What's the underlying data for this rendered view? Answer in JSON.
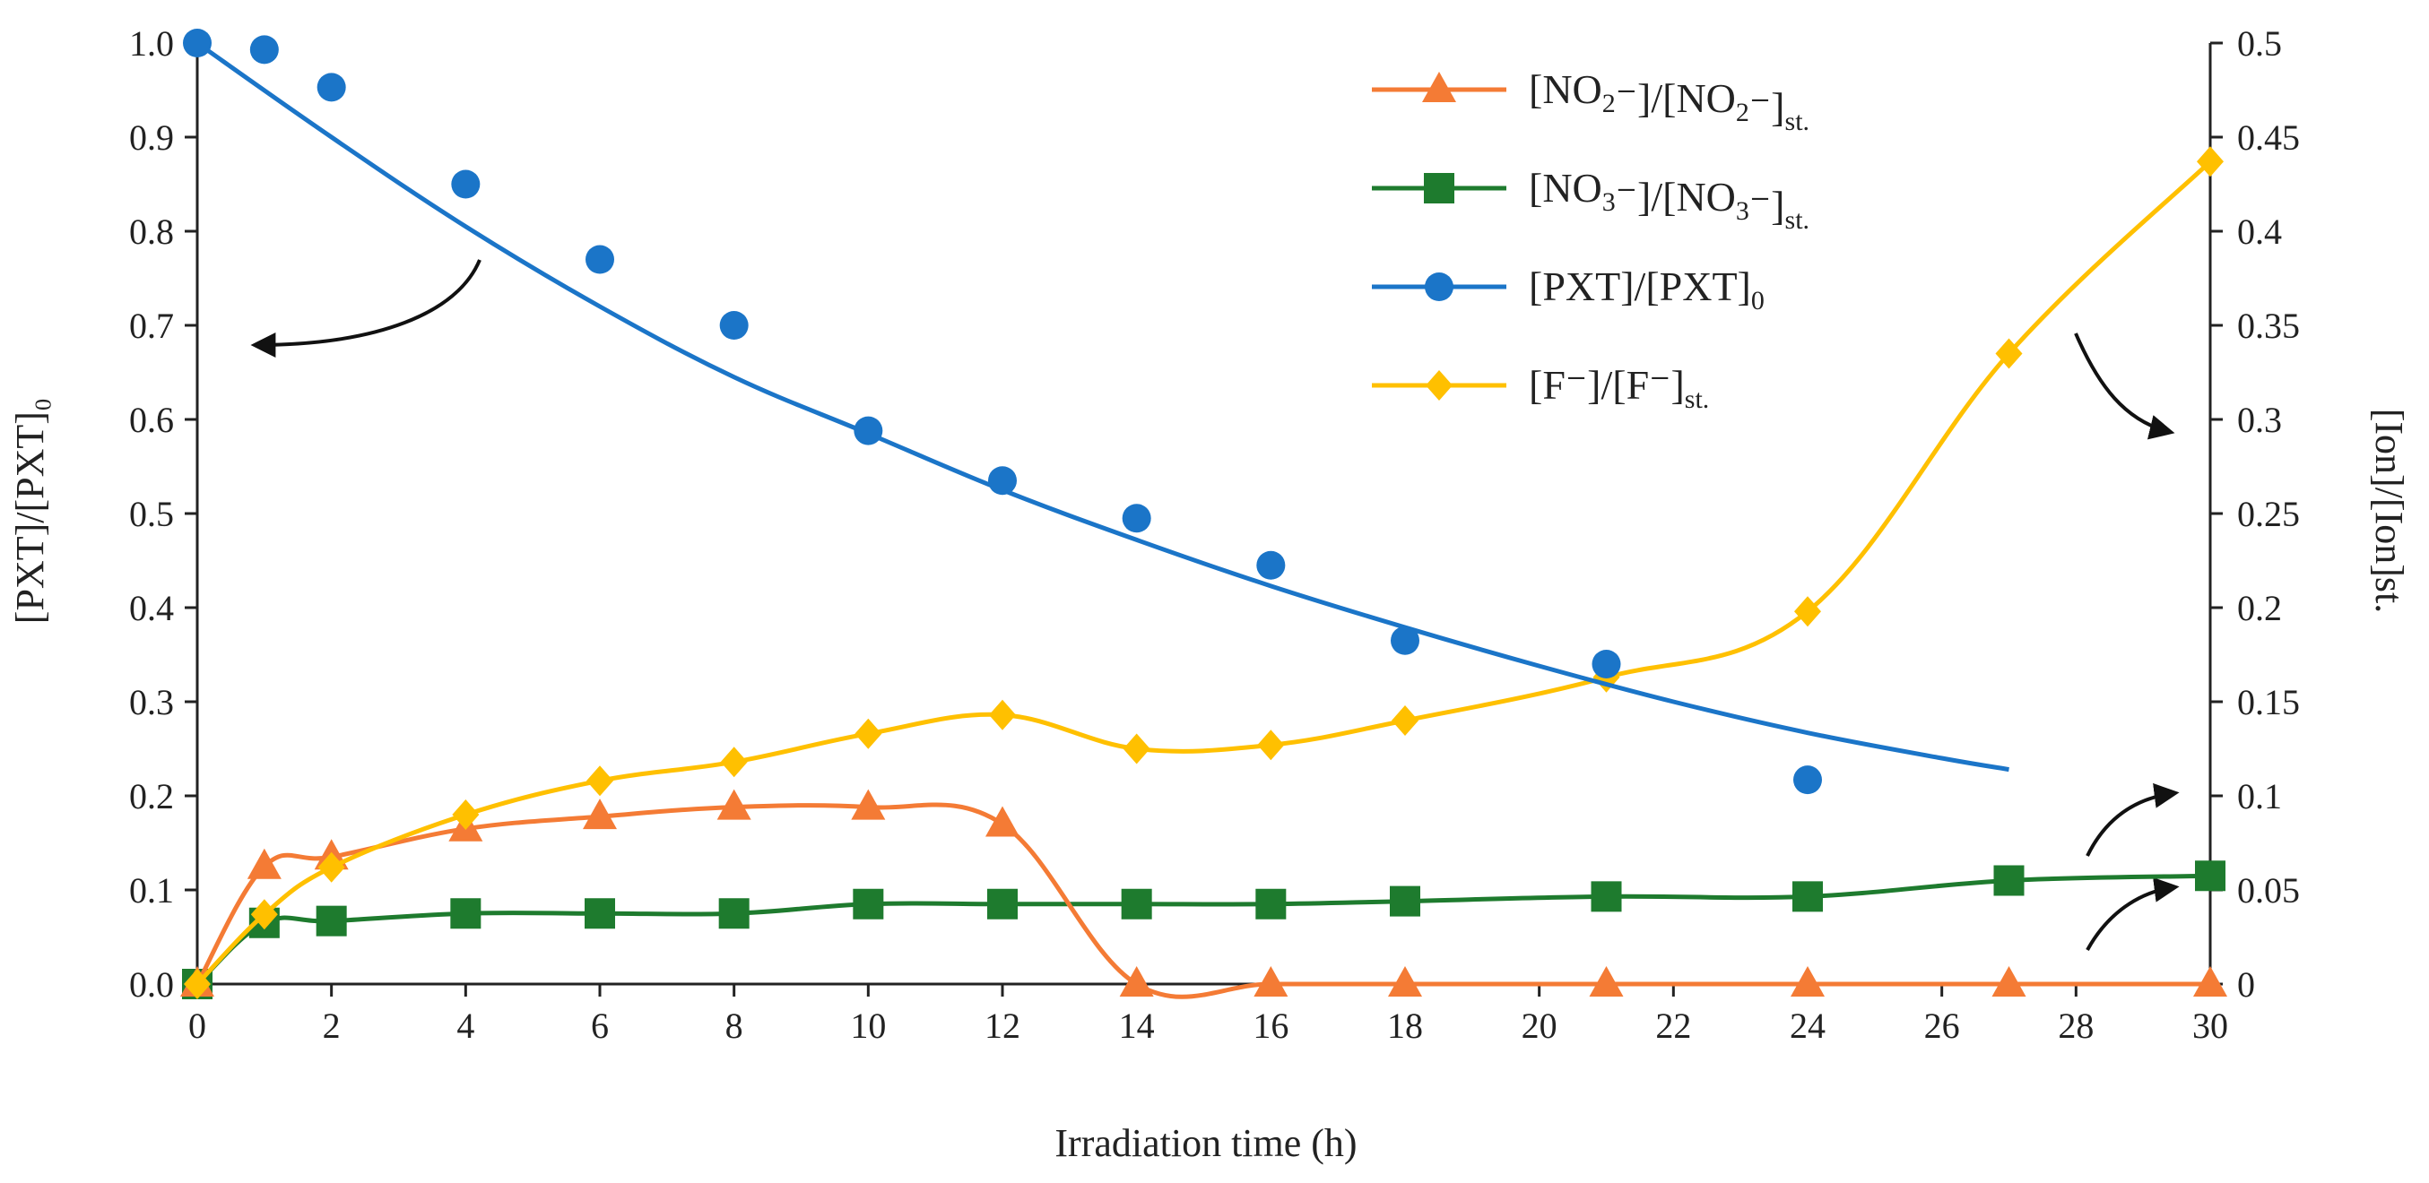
{
  "chart_data": {
    "type": "line",
    "xlabel": "Irradiation time (h)",
    "ylabel_left": "[PXT]/[PXT]₀",
    "ylabel_right": "[Ion]/[Ion]st.",
    "xlim": [
      0,
      30
    ],
    "ylim_left": [
      0,
      1
    ],
    "ylim_right": [
      0,
      0.5
    ],
    "x_ticks": [
      "0",
      "2",
      "4",
      "6",
      "8",
      "10",
      "12",
      "14",
      "16",
      "18",
      "20",
      "22",
      "24",
      "26",
      "28",
      "30"
    ],
    "y_left_ticks": [
      "0.0",
      "0.1",
      "0.2",
      "0.3",
      "0.4",
      "0.5",
      "0.6",
      "0.7",
      "0.8",
      "0.9",
      "1.0"
    ],
    "y_right_ticks": [
      "0",
      "0.05",
      "0.1",
      "0.15",
      "0.2",
      "0.25",
      "0.3",
      "0.35",
      "0.4",
      "0.45",
      "0.5"
    ],
    "grid": false,
    "legend_position": "top-right",
    "series": [
      {
        "name": "[NO2⁻]/[NO2⁻]st.",
        "legend": {
          "pre": "[NO",
          "sub1": "2",
          "mid": "⁻]/[NO",
          "sub2": "2",
          "post": "⁻]",
          "sub3": "st."
        },
        "axis": "left",
        "color": "#F47B35",
        "marker": "triangle",
        "x": [
          0,
          1,
          2,
          4,
          6,
          8,
          10,
          12,
          14,
          16,
          18,
          21,
          24,
          27,
          30
        ],
        "y": [
          0.0,
          0.125,
          0.135,
          0.165,
          0.178,
          0.188,
          0.188,
          0.17,
          0.0,
          0.0,
          0.0,
          0.0,
          0.0,
          0.0,
          0.0
        ]
      },
      {
        "name": "[NO3⁻]/[NO3⁻]st.",
        "legend": {
          "pre": "[NO",
          "sub1": "3",
          "mid": "⁻]/[NO",
          "sub2": "3",
          "post": "⁻]",
          "sub3": "st."
        },
        "axis": "left",
        "color": "#1E7B2E",
        "marker": "square",
        "x": [
          0,
          1,
          2,
          4,
          6,
          8,
          10,
          12,
          14,
          16,
          18,
          21,
          24,
          27,
          30
        ],
        "y": [
          0.0,
          0.065,
          0.067,
          0.075,
          0.075,
          0.075,
          0.085,
          0.085,
          0.085,
          0.085,
          0.088,
          0.093,
          0.093,
          0.11,
          0.115
        ]
      },
      {
        "name": "[PXT]/[PXT]0",
        "legend": {
          "pre": "[PXT]/[PXT]",
          "sub1": "0"
        },
        "axis": "left",
        "color": "#1B75C8",
        "marker": "circle",
        "x": [
          0,
          1,
          2,
          4,
          6,
          8,
          10,
          12,
          14,
          16,
          18,
          21,
          24
        ],
        "y": [
          1.0,
          0.993,
          0.953,
          0.85,
          0.77,
          0.7,
          0.588,
          0.535,
          0.495,
          0.445,
          0.365,
          0.34,
          0.217
        ],
        "fit": {
          "x": [
            0,
            2,
            4,
            6,
            8,
            10,
            12,
            14,
            16,
            18,
            20,
            22,
            24,
            26,
            27
          ],
          "y": [
            1.0,
            0.9,
            0.805,
            0.72,
            0.645,
            0.585,
            0.525,
            0.472,
            0.423,
            0.379,
            0.338,
            0.3,
            0.267,
            0.24,
            0.228
          ]
        }
      },
      {
        "name": "[F⁻]/[F⁻]st.",
        "legend": {
          "pre": "[F⁻]/[F⁻]",
          "sub1": "st."
        },
        "axis": "right",
        "color": "#FFC000",
        "marker": "diamond",
        "x": [
          0,
          1,
          2,
          4,
          6,
          8,
          10,
          12,
          14,
          16,
          18,
          21,
          24,
          27,
          30
        ],
        "y": [
          0.0,
          0.037,
          0.062,
          0.09,
          0.108,
          0.118,
          0.133,
          0.143,
          0.125,
          0.127,
          0.14,
          0.163,
          0.198,
          0.335,
          0.437
        ]
      }
    ]
  },
  "annotations": {
    "arrow_color": "#111111"
  }
}
